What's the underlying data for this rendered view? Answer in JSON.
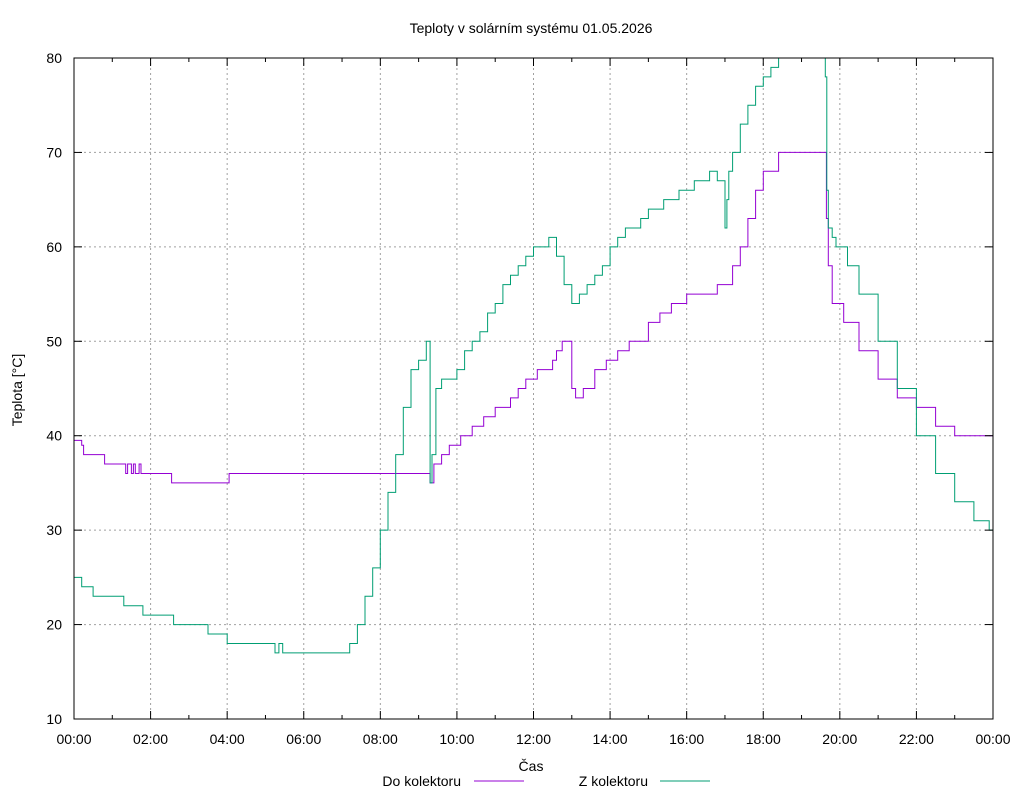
{
  "chart_data": {
    "type": "line",
    "title": "Teploty v solárním systému 01.05.2026",
    "xlabel": "Čas",
    "ylabel": "Teplota [°C]",
    "ylim": [
      10,
      80
    ],
    "xlim": [
      0,
      24
    ],
    "grid": true,
    "legend_position": "bottom-center",
    "x_ticks": [
      "00:00",
      "02:00",
      "04:00",
      "06:00",
      "08:00",
      "10:00",
      "12:00",
      "14:00",
      "16:00",
      "18:00",
      "20:00",
      "22:00",
      "00:00"
    ],
    "y_ticks": [
      10,
      20,
      30,
      40,
      50,
      60,
      70,
      80
    ],
    "series": [
      {
        "name": "Do kolektoru",
        "color": "#9400d3",
        "x": [
          0,
          0.2,
          0.25,
          0.8,
          1.3,
          1.35,
          1.4,
          1.5,
          1.55,
          1.6,
          1.7,
          1.75,
          2.5,
          2.55,
          3.5,
          4.0,
          4.05,
          8.5,
          9.3,
          9.35,
          9.4,
          9.6,
          9.8,
          10.1,
          10.4,
          10.7,
          11.0,
          11.4,
          11.6,
          11.8,
          12.1,
          12.5,
          12.6,
          12.75,
          13.0,
          13.1,
          13.3,
          13.6,
          13.9,
          14.2,
          14.5,
          15.0,
          15.3,
          15.6,
          16.0,
          16.4,
          16.8,
          17.0,
          17.2,
          17.4,
          17.6,
          17.8,
          18.0,
          18.4,
          18.7,
          19.2,
          19.62,
          19.65,
          19.7,
          19.8,
          20.1,
          20.5,
          21.0,
          21.5,
          22.0,
          22.5,
          23.0,
          23.5,
          24.0
        ],
        "y": [
          39.5,
          39,
          38,
          37,
          37,
          36,
          37,
          36,
          37,
          36,
          37,
          36,
          36,
          35,
          35,
          35,
          36,
          36,
          35,
          35,
          37,
          38,
          39,
          40,
          41,
          42,
          43,
          44,
          45,
          46,
          47,
          48,
          49,
          50,
          45,
          44,
          45,
          47,
          48,
          49,
          50,
          52,
          53,
          54,
          55,
          55,
          56,
          56,
          58,
          60,
          63,
          66,
          68,
          70,
          70,
          70,
          70,
          63,
          58,
          54,
          52,
          49,
          46,
          44,
          43,
          41,
          40,
          40,
          40
        ]
      },
      {
        "name": "Z kolektoru",
        "color": "#009e73",
        "x": [
          0,
          0.2,
          0.5,
          0.5,
          1.0,
          1.3,
          1.8,
          2.3,
          2.6,
          3.0,
          3.5,
          4.0,
          4.5,
          5.0,
          5.25,
          5.35,
          5.45,
          5.55,
          6.0,
          6.5,
          7.0,
          7.2,
          7.4,
          7.6,
          7.8,
          8.0,
          8.2,
          8.4,
          8.6,
          8.8,
          9.0,
          9.2,
          9.3,
          9.35,
          9.45,
          9.6,
          9.8,
          10.0,
          10.2,
          10.4,
          10.6,
          10.8,
          11.0,
          11.2,
          11.4,
          11.6,
          11.8,
          12.0,
          12.2,
          12.4,
          12.6,
          12.8,
          13.0,
          13.2,
          13.4,
          13.6,
          13.8,
          14.0,
          14.2,
          14.4,
          14.6,
          14.8,
          15.0,
          15.2,
          15.4,
          15.6,
          15.8,
          16.0,
          16.2,
          16.4,
          16.6,
          16.8,
          17.0,
          17.05,
          17.1,
          17.2,
          17.4,
          17.6,
          17.8,
          18.0,
          18.2,
          18.4,
          18.6,
          18.8,
          19.0,
          19.2,
          19.4,
          19.6,
          19.62,
          19.66,
          19.7,
          19.8,
          19.9,
          20.0,
          20.2,
          20.5,
          21.0,
          21.5,
          22.0,
          22.5,
          23.0,
          23.5,
          23.9,
          24.0
        ],
        "y": [
          25,
          24,
          23,
          23,
          23,
          22,
          21,
          21,
          20,
          20,
          19,
          18,
          18,
          18,
          17,
          18,
          17,
          17,
          17,
          17,
          17,
          18,
          20,
          23,
          26,
          30,
          34,
          38,
          43,
          47,
          48,
          50,
          35,
          38,
          45,
          46,
          46,
          47,
          49,
          50,
          51,
          53,
          54,
          56,
          57,
          58,
          59,
          60,
          60,
          61,
          59,
          56,
          54,
          55,
          56,
          57,
          58,
          60,
          61,
          62,
          62,
          63,
          64,
          64,
          65,
          65,
          66,
          66,
          67,
          67,
          68,
          67,
          62,
          65,
          68,
          70,
          73,
          75,
          77,
          78,
          79,
          80,
          80,
          80,
          80,
          80,
          80,
          80,
          78,
          66,
          62,
          61,
          60,
          60,
          58,
          55,
          50,
          45,
          40,
          36,
          33,
          31,
          30,
          30
        ]
      }
    ]
  }
}
